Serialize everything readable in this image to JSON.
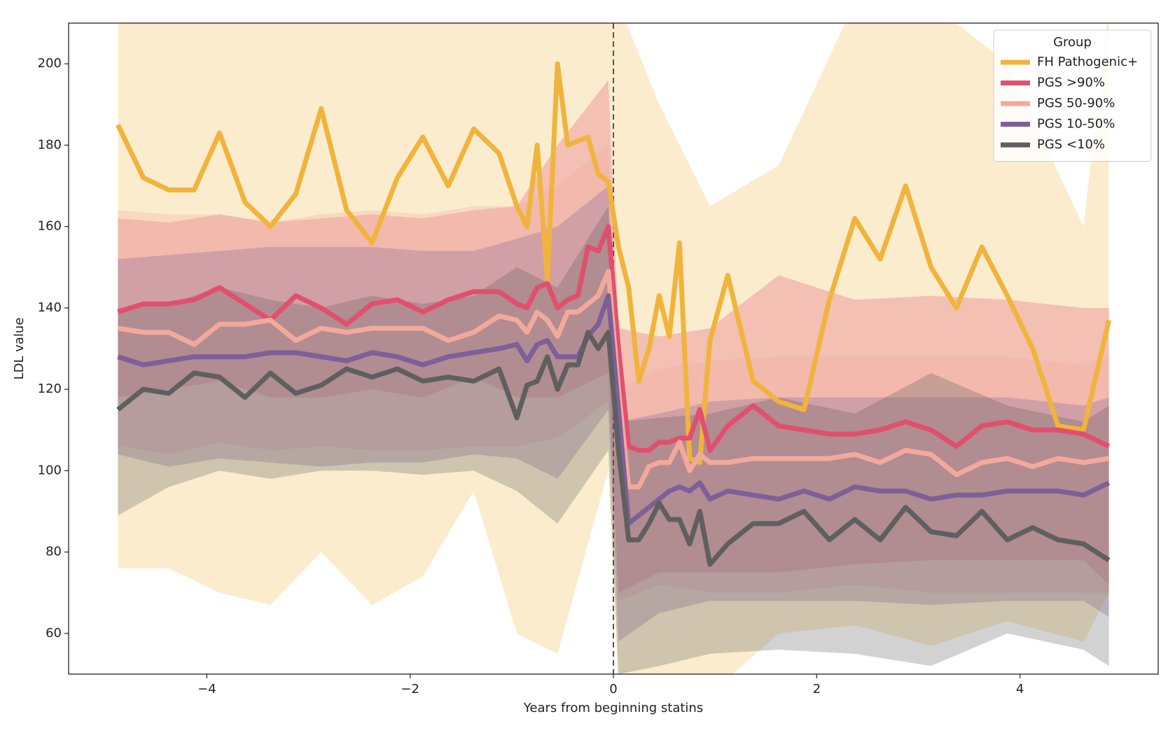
{
  "chart_data": {
    "type": "line",
    "x_label": "Years from beginning statins",
    "y_label": "LDL value",
    "xlim": [
      -5.36,
      5.36
    ],
    "ylim": [
      50,
      210
    ],
    "xticks": [
      {
        "value": -4,
        "label": "−4"
      },
      {
        "value": -2,
        "label": "−2"
      },
      0,
      2,
      4
    ],
    "yticks": [
      60,
      80,
      100,
      120,
      140,
      160,
      180,
      200
    ],
    "vline": 0,
    "legend_title": "Group",
    "legend": "upper right",
    "x": [
      -4.875,
      -4.625,
      -4.375,
      -4.125,
      -3.875,
      -3.625,
      -3.375,
      -3.125,
      -2.875,
      -2.625,
      -2.375,
      -2.125,
      -1.875,
      -1.625,
      -1.375,
      -1.125,
      -0.95,
      -0.85,
      -0.75,
      -0.65,
      -0.55,
      -0.45,
      -0.35,
      -0.25,
      -0.15,
      -0.05,
      0.05,
      0.15,
      0.25,
      0.35,
      0.45,
      0.55,
      0.65,
      0.75,
      0.85,
      0.95,
      1.125,
      1.375,
      1.625,
      1.875,
      2.125,
      2.375,
      2.625,
      2.875,
      3.125,
      3.375,
      3.625,
      3.875,
      4.125,
      4.375,
      4.625,
      4.875
    ],
    "band_x": [
      -4.875,
      -4.375,
      -3.875,
      -3.375,
      -2.875,
      -2.375,
      -1.875,
      -1.375,
      -0.95,
      -0.55,
      -0.05,
      0.05,
      0.45,
      0.95,
      1.625,
      2.375,
      3.125,
      3.875,
      4.625,
      4.875
    ],
    "series": [
      {
        "name": "FH Pathogenic+",
        "color": "#f0b43c",
        "values": [
          185,
          172,
          169,
          169,
          183,
          166,
          160,
          168,
          189,
          164,
          156,
          172,
          182,
          170,
          184,
          178,
          165,
          160,
          180,
          147,
          200,
          180,
          181,
          182,
          173,
          171,
          155,
          145,
          122,
          130,
          143,
          133,
          156,
          103,
          102,
          132,
          148,
          122,
          117,
          115,
          142,
          162,
          152,
          170,
          150,
          140,
          155,
          143,
          130,
          111,
          110,
          137
        ],
        "lower": [
          76,
          76,
          70,
          67,
          80,
          67,
          74,
          95,
          60,
          55,
          100,
          45,
          45,
          45,
          60,
          62,
          57,
          63,
          58,
          70
        ],
        "upper": [
          215,
          215,
          215,
          215,
          215,
          215,
          215,
          215,
          215,
          215,
          215,
          215,
          190,
          165,
          175,
          215,
          215,
          200,
          160,
          215
        ]
      },
      {
        "name": "PGS >90%",
        "color": "#e0506e",
        "values": [
          139,
          141,
          141,
          142,
          145,
          141,
          137,
          143,
          140,
          136,
          141,
          142,
          139,
          142,
          144,
          144,
          141,
          140,
          145,
          146,
          140,
          142,
          143,
          155,
          154,
          160,
          130,
          106,
          105,
          105,
          107,
          107,
          108,
          108,
          115,
          105,
          111,
          116,
          111,
          110,
          109,
          109,
          110,
          112,
          110,
          106,
          111,
          112,
          110,
          110,
          109,
          106
        ],
        "lower": [
          118,
          120,
          122,
          118,
          118,
          120,
          118,
          123,
          118,
          118,
          124,
          70,
          75,
          75,
          75,
          77,
          78,
          78,
          78,
          72
        ],
        "upper": [
          162,
          161,
          163,
          161,
          162,
          163,
          162,
          164,
          165,
          180,
          196,
          135,
          133,
          135,
          148,
          142,
          143,
          142,
          140,
          140
        ]
      },
      {
        "name": "PGS 50-90%",
        "color": "#f2a99c",
        "values": [
          135,
          134,
          134,
          131,
          136,
          136,
          137,
          132,
          135,
          134,
          135,
          135,
          135,
          132,
          134,
          138,
          137,
          134,
          139,
          137,
          133,
          139,
          139,
          141,
          143,
          149,
          120,
          96,
          96,
          101,
          102,
          102,
          107,
          100,
          104,
          102,
          102,
          103,
          103,
          103,
          103,
          104,
          102,
          105,
          104,
          99,
          102,
          103,
          101,
          103,
          102,
          103
        ],
        "lower": [
          106,
          104,
          107,
          105,
          106,
          105,
          105,
          106,
          106,
          108,
          117,
          68,
          72,
          70,
          70,
          72,
          70,
          70,
          70,
          70
        ],
        "upper": [
          164,
          163,
          163,
          161,
          163,
          164,
          163,
          165,
          165,
          170,
          180,
          120,
          125,
          127,
          128,
          128,
          128,
          128,
          126,
          128
        ]
      },
      {
        "name": "PGS 10-50%",
        "color": "#7e5f98",
        "values": [
          128,
          126,
          127,
          128,
          128,
          128,
          129,
          129,
          128,
          127,
          129,
          128,
          126,
          128,
          129,
          130,
          131,
          127,
          131,
          132,
          128,
          128,
          128,
          133,
          136,
          143,
          115,
          87,
          89,
          91,
          93,
          95,
          96,
          95,
          97,
          93,
          95,
          94,
          93,
          95,
          93,
          96,
          95,
          95,
          93,
          94,
          94,
          95,
          95,
          95,
          94,
          97
        ],
        "lower": [
          104,
          101,
          103,
          102,
          101,
          102,
          102,
          104,
          103,
          98,
          115,
          58,
          65,
          68,
          68,
          68,
          67,
          68,
          68,
          64
        ],
        "upper": [
          152,
          153,
          154,
          155,
          155,
          155,
          154,
          154,
          157,
          160,
          170,
          112,
          114,
          117,
          118,
          118,
          118,
          118,
          116,
          118
        ]
      },
      {
        "name": "PGS <10%",
        "color": "#5f5f5f",
        "values": [
          115,
          120,
          119,
          124,
          123,
          118,
          124,
          119,
          121,
          125,
          123,
          125,
          122,
          123,
          122,
          125,
          113,
          121,
          122,
          128,
          120,
          126,
          126,
          134,
          130,
          134,
          105,
          83,
          83,
          87,
          92,
          88,
          88,
          82,
          90,
          77,
          82,
          87,
          87,
          90,
          83,
          88,
          83,
          91,
          85,
          84,
          90,
          83,
          86,
          83,
          82,
          78
        ],
        "lower": [
          89,
          96,
          100,
          98,
          100,
          100,
          99,
          100,
          95,
          87,
          105,
          50,
          52,
          55,
          56,
          55,
          52,
          60,
          56,
          52
        ],
        "upper": [
          140,
          141,
          145,
          142,
          140,
          143,
          141,
          143,
          150,
          145,
          165,
          112,
          113,
          114,
          118,
          114,
          124,
          116,
          112,
          116
        ]
      }
    ]
  }
}
